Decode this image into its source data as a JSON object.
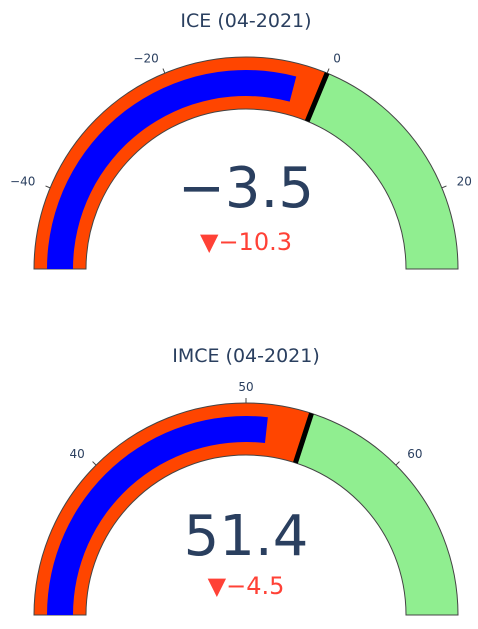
{
  "chart_data": [
    {
      "type": "gauge",
      "title": "ICE (04-2021)",
      "value": -3.5,
      "value_label": "−3.5",
      "delta": -10.3,
      "delta_label": "▼−10.3",
      "range": [
        -50,
        30
      ],
      "bar_value": -3.5,
      "threshold": 0,
      "steps": [
        {
          "range": [
            -50,
            0
          ],
          "color": "#ff4500"
        },
        {
          "range": [
            0,
            30
          ],
          "color": "#90ee90"
        }
      ],
      "bar_color": "#0000ff",
      "threshold_color": "#000000",
      "ticks": [
        {
          "value": -40,
          "label": "−40"
        },
        {
          "value": -20,
          "label": "−20"
        },
        {
          "value": 0,
          "label": "0"
        },
        {
          "value": 20,
          "label": "20"
        }
      ]
    },
    {
      "type": "gauge",
      "title": "IMCE (04-2021)",
      "value": 51.4,
      "value_label": "51.4",
      "delta": -4.5,
      "delta_label": "▼−4.5",
      "range": [
        30,
        70
      ],
      "bar_value": 51.4,
      "threshold": 54,
      "steps": [
        {
          "range": [
            30,
            54
          ],
          "color": "#ff4500"
        },
        {
          "range": [
            54,
            70
          ],
          "color": "#90ee90"
        }
      ],
      "bar_color": "#0000ff",
      "threshold_color": "#000000",
      "ticks": [
        {
          "value": 40,
          "label": "40"
        },
        {
          "value": 50,
          "label": "50"
        },
        {
          "value": 60,
          "label": "60"
        }
      ]
    }
  ]
}
